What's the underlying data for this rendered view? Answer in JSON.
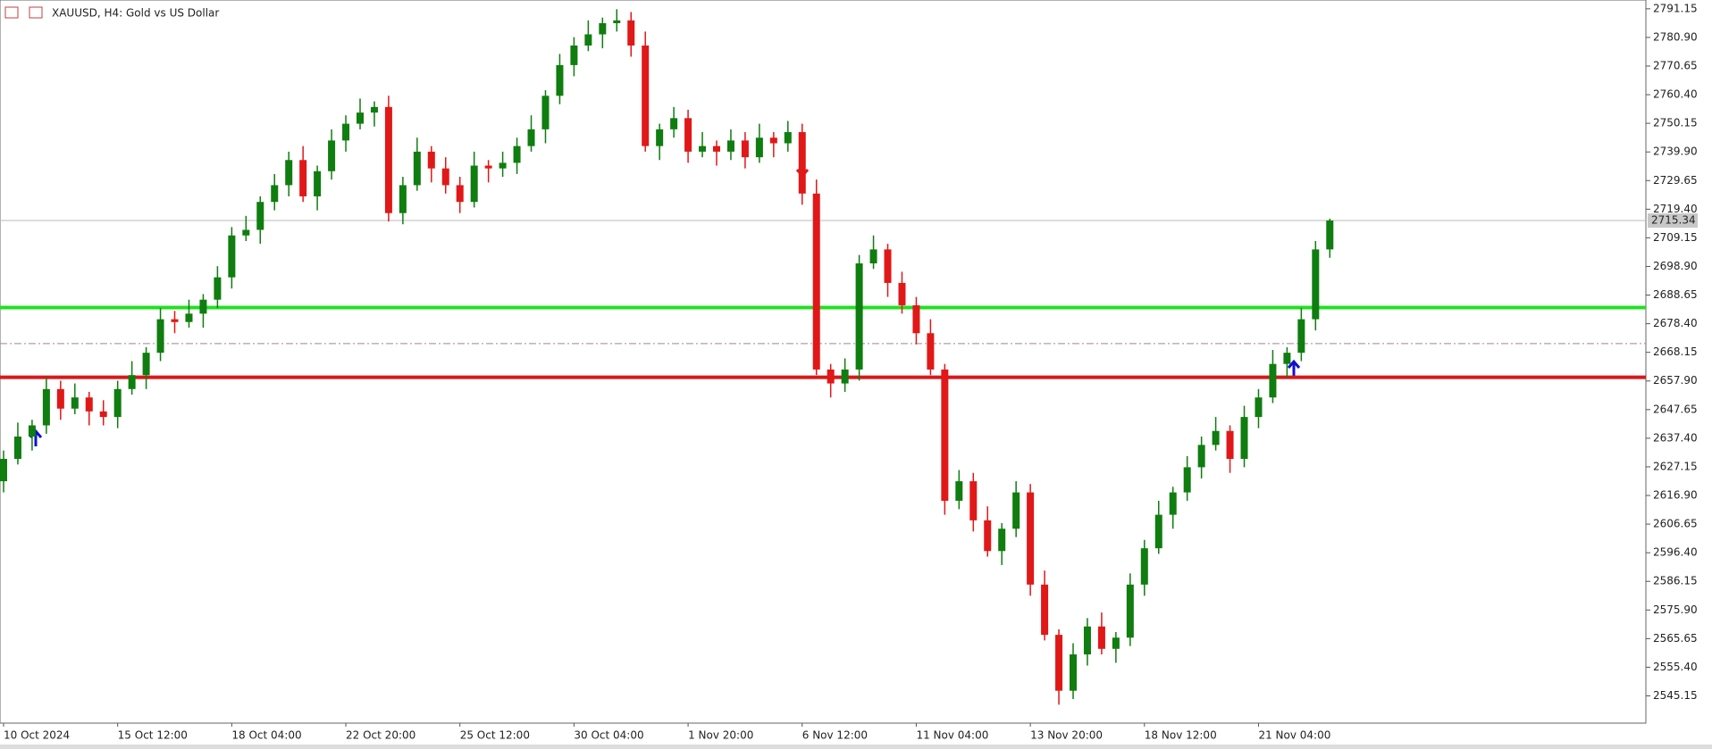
{
  "chart_data": {
    "type": "candlestick",
    "title": "XAUUSD, H4:  Gold vs US Dollar",
    "up_color": "#0f7d0f",
    "down_color": "#e01818",
    "categories": [
      "10 Oct 2024",
      null,
      null,
      null,
      null,
      null,
      null,
      null,
      "15 Oct 12:00",
      null,
      null,
      null,
      null,
      null,
      null,
      null,
      "18 Oct 04:00",
      null,
      null,
      null,
      null,
      null,
      null,
      null,
      "22 Oct 20:00",
      null,
      null,
      null,
      null,
      null,
      null,
      null,
      "25 Oct 12:00",
      null,
      null,
      null,
      null,
      null,
      null,
      null,
      "30 Oct 04:00",
      null,
      null,
      null,
      null,
      null,
      null,
      null,
      "1 Nov 20:00",
      null,
      null,
      null,
      null,
      null,
      null,
      null,
      "6 Nov 12:00",
      null,
      null,
      null,
      null,
      null,
      null,
      null,
      "11 Nov 04:00",
      null,
      null,
      null,
      null,
      null,
      null,
      null,
      "13 Nov 20:00",
      null,
      null,
      null,
      null,
      null,
      null,
      null,
      "18 Nov 12:00",
      null,
      null,
      null,
      null,
      null,
      null,
      null,
      "21 Nov 04:00",
      null,
      null,
      null,
      null,
      null
    ],
    "open": [
      2622,
      2630,
      2638,
      2642,
      2655,
      2648,
      2652,
      2647,
      2645,
      2655,
      2660,
      2668,
      2680,
      2679,
      2682,
      2687,
      2695,
      2710,
      2712,
      2722,
      2728,
      2737,
      2724,
      2733,
      2744,
      2750,
      2754,
      2756,
      2718,
      2728,
      2740,
      2734,
      2728,
      2722,
      2735,
      2734,
      2736,
      2742,
      2748,
      2760,
      2771,
      2778,
      2782,
      2786,
      2787,
      2778,
      2742,
      2748,
      2752,
      2740,
      2742,
      2740,
      2744,
      2738,
      2745,
      2743,
      2747,
      2725,
      2662,
      2657,
      2662,
      2700,
      2705,
      2693,
      2685,
      2675,
      2662,
      2615,
      2622,
      2608,
      2597,
      2605,
      2618,
      2585,
      2567,
      2547,
      2560,
      2570,
      2562,
      2566,
      2585,
      2598,
      2610,
      2618,
      2627,
      2635,
      2640,
      2630,
      2645,
      2652,
      2664,
      2668,
      2680,
      2705
    ],
    "high": [
      2633,
      2643,
      2644,
      2659,
      2658,
      2657,
      2654,
      2651,
      2658,
      2665,
      2670,
      2684,
      2683,
      2687,
      2689,
      2699,
      2713,
      2717,
      2724,
      2732,
      2740,
      2742,
      2735,
      2748,
      2753,
      2759,
      2758,
      2760,
      2731,
      2745,
      2742,
      2738,
      2731,
      2740,
      2737,
      2740,
      2745,
      2753,
      2762,
      2775,
      2781,
      2787,
      2788,
      2791,
      2790,
      2783,
      2750,
      2756,
      2755,
      2747,
      2744,
      2748,
      2747,
      2750,
      2747,
      2751,
      2750,
      2730,
      2664,
      2666,
      2703,
      2710,
      2707,
      2697,
      2688,
      2680,
      2664,
      2626,
      2625,
      2613,
      2607,
      2622,
      2621,
      2590,
      2569,
      2564,
      2573,
      2575,
      2568,
      2589,
      2601,
      2615,
      2620,
      2631,
      2638,
      2645,
      2642,
      2649,
      2655,
      2669,
      2670,
      2684,
      2708,
      2716
    ],
    "low": [
      2618,
      2628,
      2633,
      2639,
      2644,
      2646,
      2642,
      2642,
      2641,
      2653,
      2655,
      2665,
      2675,
      2677,
      2677,
      2684,
      2691,
      2708,
      2707,
      2719,
      2724,
      2722,
      2719,
      2730,
      2740,
      2748,
      2749,
      2715,
      2714,
      2726,
      2729,
      2725,
      2718,
      2720,
      2729,
      2731,
      2732,
      2740,
      2743,
      2757,
      2767,
      2776,
      2777,
      2783,
      2774,
      2740,
      2737,
      2745,
      2736,
      2738,
      2735,
      2737,
      2734,
      2736,
      2738,
      2740,
      2721,
      2660,
      2652,
      2654,
      2658,
      2698,
      2688,
      2682,
      2671,
      2660,
      2610,
      2612,
      2604,
      2595,
      2592,
      2602,
      2581,
      2565,
      2542,
      2544,
      2556,
      2560,
      2557,
      2563,
      2581,
      2596,
      2605,
      2615,
      2623,
      2633,
      2625,
      2627,
      2641,
      2650,
      2659,
      2665,
      2676,
      2702
    ],
    "close": [
      2630,
      2638,
      2642,
      2655,
      2648,
      2652,
      2647,
      2645,
      2655,
      2660,
      2668,
      2680,
      2679,
      2682,
      2687,
      2695,
      2710,
      2712,
      2722,
      2728,
      2737,
      2724,
      2733,
      2744,
      2750,
      2754,
      2756,
      2718,
      2728,
      2740,
      2734,
      2728,
      2722,
      2735,
      2734,
      2736,
      2742,
      2748,
      2760,
      2771,
      2778,
      2782,
      2786,
      2787,
      2778,
      2742,
      2748,
      2752,
      2740,
      2742,
      2740,
      2744,
      2738,
      2745,
      2743,
      2747,
      2725,
      2662,
      2657,
      2662,
      2700,
      2705,
      2693,
      2685,
      2675,
      2662,
      2615,
      2622,
      2608,
      2597,
      2605,
      2618,
      2585,
      2567,
      2547,
      2560,
      2570,
      2562,
      2566,
      2585,
      2598,
      2610,
      2618,
      2627,
      2635,
      2640,
      2630,
      2645,
      2652,
      2664,
      2668,
      2680,
      2705,
      2715.34
    ],
    "ylim": [
      2535.4,
      2794.3
    ],
    "yticks": [
      2791.15,
      {
        "value": 2780.9,
        "label": "2780.90"
      },
      2770.65,
      {
        "value": 2760.4,
        "label": "2760.40"
      },
      2750.15,
      {
        "value": 2739.9,
        "label": "2739.90"
      },
      2729.65,
      {
        "value": 2719.4,
        "label": "2719.40"
      },
      2709.15,
      {
        "value": 2698.9,
        "label": "2698.90"
      },
      2688.65,
      {
        "value": 2678.4,
        "label": "2678.40"
      },
      2668.15,
      {
        "value": 2657.9,
        "label": "2657.90"
      },
      2647.65,
      {
        "value": 2637.4,
        "label": "2637.40"
      },
      2627.15,
      {
        "value": 2616.9,
        "label": "2616.90"
      },
      2606.65,
      {
        "value": 2596.4,
        "label": "2596.40"
      },
      2586.15,
      {
        "value": 2575.9,
        "label": "2575.90"
      },
      2565.65,
      {
        "value": 2555.4,
        "label": "2555.40"
      },
      2545.15
    ],
    "levels": [
      {
        "value": 2684.2,
        "color": "#22e022",
        "style": "solid"
      },
      {
        "value": 2659.2,
        "color": "#d81818",
        "style": "solid"
      },
      {
        "value": 2671.3,
        "color": "#a08890",
        "style": "dashdot"
      }
    ],
    "last_price": 2715.34
  }
}
